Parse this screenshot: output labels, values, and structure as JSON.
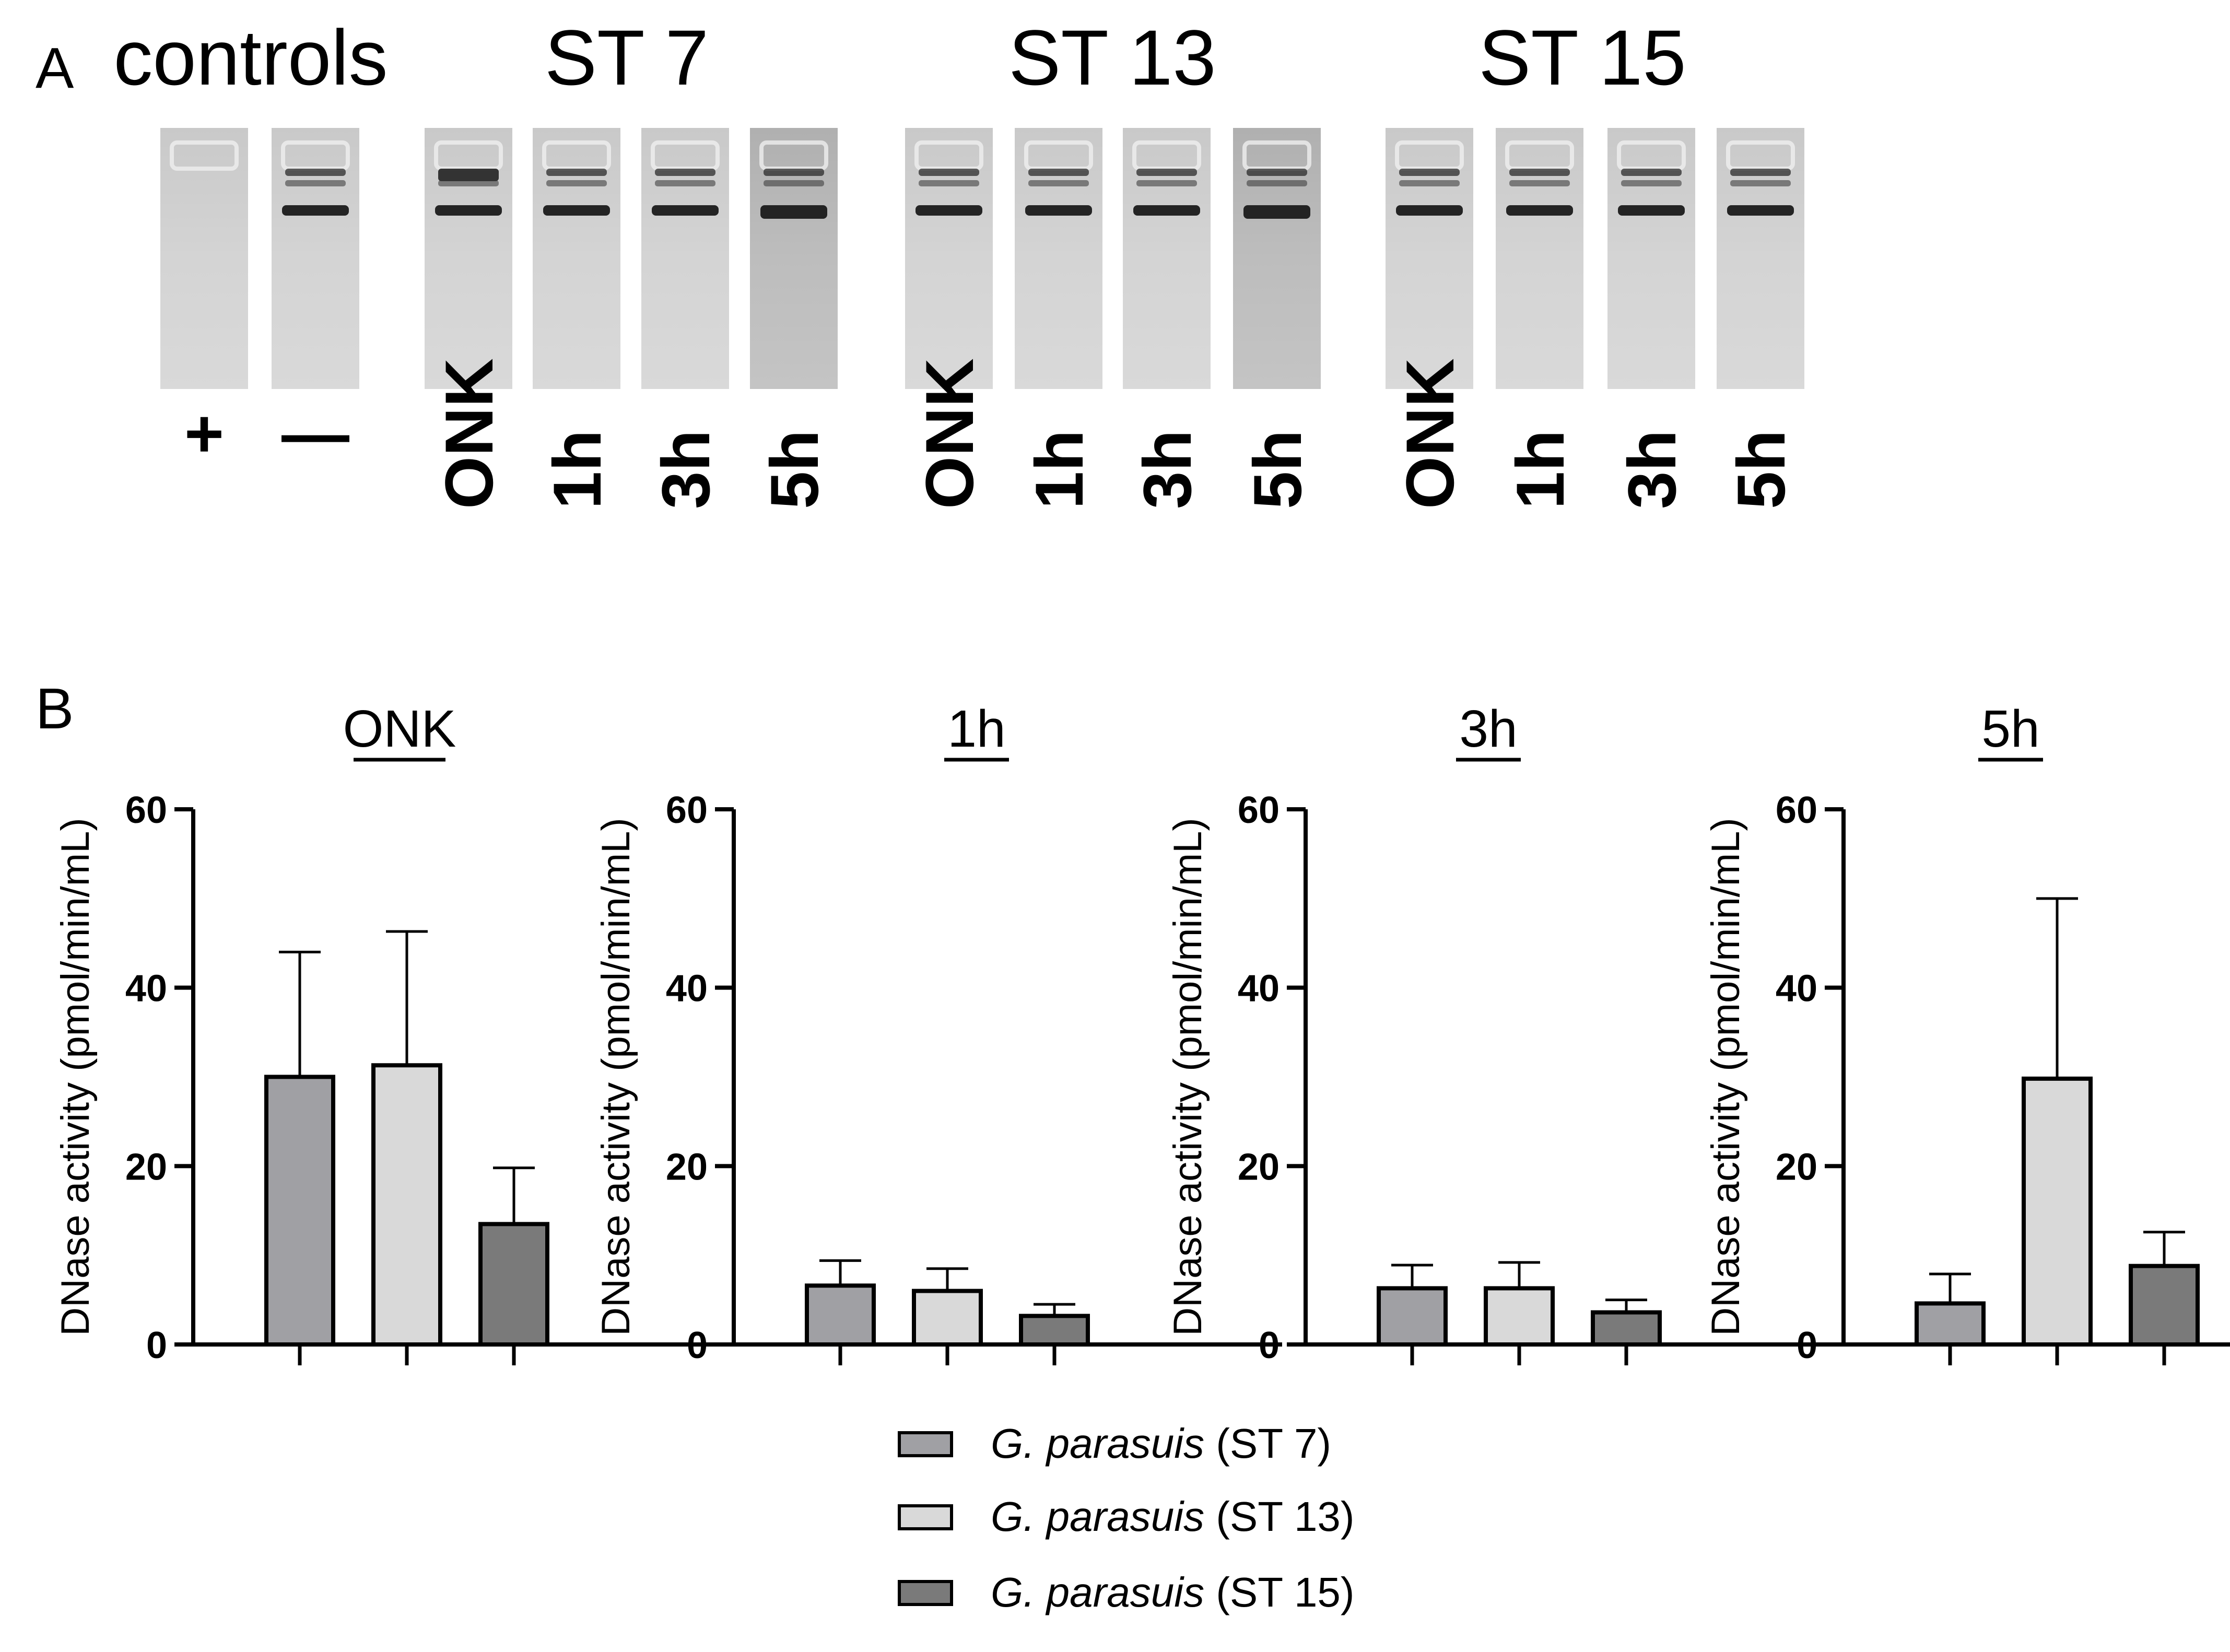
{
  "panel_a": {
    "letter": "A",
    "groups": [
      {
        "header": "controls",
        "lanes": [
          {
            "label": "+",
            "state": "empty"
          },
          {
            "label": "—",
            "state": "neg-control"
          }
        ]
      },
      {
        "header": "ST 7",
        "lanes": [
          {
            "label": "ONK",
            "state": "strong"
          },
          {
            "label": "1h",
            "state": "normal"
          },
          {
            "label": "3h",
            "state": "normal"
          },
          {
            "label": "5h",
            "state": "dark"
          }
        ]
      },
      {
        "header": "ST 13",
        "lanes": [
          {
            "label": "ONK",
            "state": "normal"
          },
          {
            "label": "1h",
            "state": "normal"
          },
          {
            "label": "3h",
            "state": "normal"
          },
          {
            "label": "5h",
            "state": "dark"
          }
        ]
      },
      {
        "header": "ST 15",
        "lanes": [
          {
            "label": "ONK",
            "state": "normal"
          },
          {
            "label": "1h",
            "state": "normal"
          },
          {
            "label": "3h",
            "state": "normal"
          },
          {
            "label": "5h",
            "state": "normal"
          }
        ]
      }
    ]
  },
  "panel_b": {
    "letter": "B",
    "ylabel": "DNase activity (pmol/min/mL)",
    "legend": [
      {
        "italic": "G. parasuis",
        "suffix": " (ST 7)",
        "color": "#a0a0a4"
      },
      {
        "italic": "G. parasuis",
        "suffix": " (ST 13)",
        "color": "#d9d9d9"
      },
      {
        "italic": "G. parasuis",
        "suffix": " (ST 15)",
        "color": "#7a7a7a"
      }
    ]
  },
  "chart_data": [
    {
      "type": "bar",
      "title": "ONK",
      "xlabel": "",
      "ylabel": "DNase activity (pmol/min/mL)",
      "ylim": [
        0,
        60
      ],
      "yticks": [
        0,
        20,
        40,
        60
      ],
      "categories": [
        "ST 7",
        "ST 13",
        "ST 15"
      ],
      "values": [
        30,
        31.3,
        13.5
      ],
      "errors": [
        14,
        15,
        6.3
      ],
      "colors": [
        "#a0a0a4",
        "#d9d9d9",
        "#7a7a7a"
      ]
    },
    {
      "type": "bar",
      "title": "1h",
      "xlabel": "",
      "ylabel": "DNase activity (pmol/min/mL)",
      "ylim": [
        0,
        60
      ],
      "yticks": [
        0,
        20,
        40,
        60
      ],
      "categories": [
        "ST 7",
        "ST 13",
        "ST 15"
      ],
      "values": [
        6.6,
        6.0,
        3.2
      ],
      "errors": [
        2.8,
        2.5,
        1.3
      ],
      "colors": [
        "#a0a0a4",
        "#d9d9d9",
        "#7a7a7a"
      ]
    },
    {
      "type": "bar",
      "title": "3h",
      "xlabel": "",
      "ylabel": "DNase activity (pmol/min/mL)",
      "ylim": [
        0,
        60
      ],
      "yticks": [
        0,
        20,
        40,
        60
      ],
      "categories": [
        "ST 7",
        "ST 13",
        "ST 15"
      ],
      "values": [
        6.3,
        6.3,
        3.6
      ],
      "errors": [
        2.6,
        2.9,
        1.4
      ],
      "colors": [
        "#a0a0a4",
        "#d9d9d9",
        "#7a7a7a"
      ]
    },
    {
      "type": "bar",
      "title": "5h",
      "xlabel": "",
      "ylabel": "DNase activity (pmol/min/mL)",
      "ylim": [
        0,
        60
      ],
      "yticks": [
        0,
        20,
        40,
        60
      ],
      "categories": [
        "ST 7",
        "ST 13",
        "ST 15"
      ],
      "values": [
        4.6,
        29.8,
        8.8
      ],
      "errors": [
        3.3,
        20.2,
        3.8
      ],
      "colors": [
        "#a0a0a4",
        "#d9d9d9",
        "#7a7a7a"
      ]
    }
  ]
}
